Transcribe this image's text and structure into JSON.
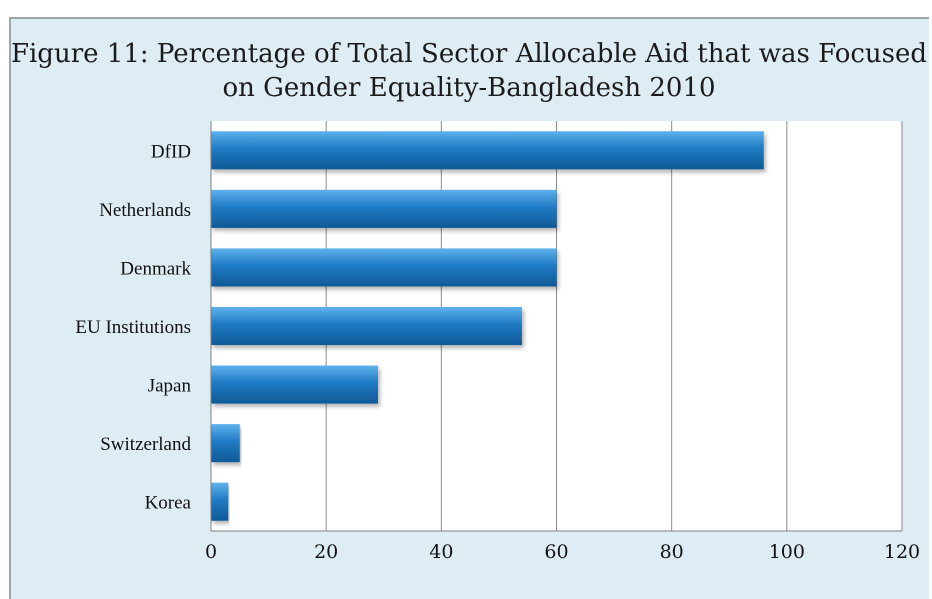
{
  "chart_data": {
    "type": "bar",
    "orientation": "horizontal",
    "title": "Figure 11: Percentage of Total Sector Allocable Aid that was Focused on Gender Equality-Bangladesh 2010",
    "categories": [
      "DfID",
      "Netherlands",
      "Denmark",
      "EU Institutions",
      "Japan",
      "Switzerland",
      "Korea"
    ],
    "values": [
      96,
      60,
      60,
      54,
      29,
      5,
      3
    ],
    "xlim": [
      0,
      120
    ],
    "xticks": [
      "0",
      "20",
      "40",
      "60",
      "80",
      "100",
      "120"
    ],
    "grid": "vertical",
    "bar_color": "#1f7bc4",
    "plot_background": "#ffffff",
    "panel_background": "#deecf3"
  }
}
